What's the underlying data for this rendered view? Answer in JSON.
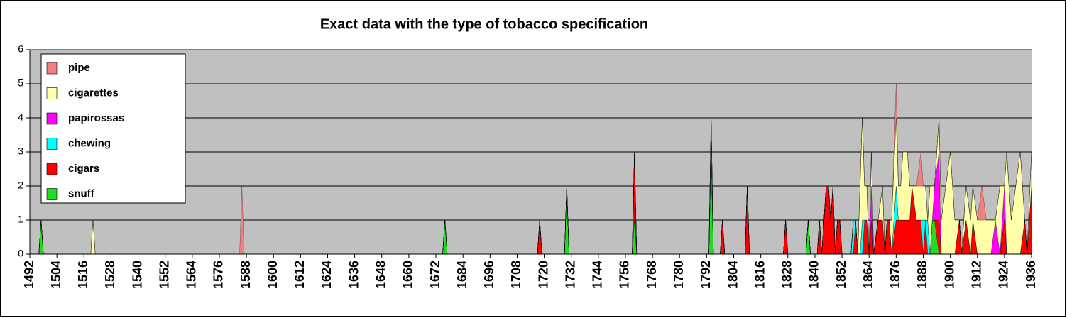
{
  "chart_data": {
    "type": "stacked-area",
    "title": "Exact data with the type of tobacco specification",
    "x": [
      1492,
      1496,
      1497,
      1498,
      1519,
      1520,
      1521,
      1585,
      1586,
      1587,
      1675,
      1676,
      1677,
      1717,
      1718,
      1719,
      1729,
      1730,
      1731,
      1759,
      1760,
      1761,
      1793,
      1794,
      1795,
      1798,
      1799,
      1800,
      1809,
      1810,
      1811,
      1826,
      1827,
      1828,
      1836,
      1837,
      1838,
      1841,
      1842,
      1843,
      1844,
      1845,
      1846,
      1847,
      1848,
      1849,
      1850,
      1851,
      1852,
      1856,
      1857,
      1858,
      1859,
      1860,
      1861,
      1862,
      1863,
      1864,
      1865,
      1866,
      1868,
      1870,
      1871,
      1872,
      1873,
      1874,
      1876,
      1877,
      1878,
      1879,
      1881,
      1882,
      1883,
      1885,
      1887,
      1888,
      1889,
      1890,
      1891,
      1892,
      1893,
      1895,
      1896,
      1898,
      1900,
      1902,
      1904,
      1905,
      1907,
      1909,
      1910,
      1912,
      1914,
      1916,
      1918,
      1920,
      1922,
      1924,
      1925,
      1927,
      1929,
      1931,
      1933,
      1934,
      1936
    ],
    "series": [
      {
        "name": "snuff",
        "color": "#22dd22",
        "values": [
          0,
          0,
          1,
          0,
          0,
          0,
          0,
          0,
          0,
          0,
          0,
          1,
          0,
          0,
          0,
          0,
          0,
          2,
          0,
          0,
          1,
          0,
          0,
          3,
          0,
          0,
          0,
          0,
          0,
          0,
          0,
          0,
          0,
          0,
          0,
          1,
          0,
          0,
          0,
          0,
          0,
          0,
          0,
          0,
          0,
          0,
          0,
          0,
          0,
          0,
          0,
          0,
          0,
          0,
          0,
          0,
          0,
          0,
          0,
          0,
          0,
          0,
          0,
          0,
          0,
          0,
          0,
          0,
          0,
          0,
          0,
          0,
          0,
          0,
          0,
          0,
          0,
          0,
          0,
          1,
          1,
          0,
          0,
          0,
          0,
          0,
          0,
          0,
          0,
          0,
          0,
          0,
          0,
          0,
          0,
          0,
          0,
          0,
          0,
          0,
          0,
          0,
          0,
          0,
          0
        ]
      },
      {
        "name": "cigars",
        "color": "#ff0000",
        "values": [
          0,
          0,
          0,
          0,
          0,
          0,
          0,
          0,
          0,
          0,
          0,
          0,
          0,
          0,
          1,
          0,
          0,
          0,
          0,
          0,
          2,
          0,
          0,
          0,
          0,
          0,
          1,
          0,
          0,
          2,
          0,
          0,
          1,
          0,
          0,
          0,
          0,
          0,
          1,
          0,
          1,
          2,
          2,
          1,
          2,
          0,
          1,
          1,
          0,
          0,
          0,
          1,
          0,
          0,
          0,
          1,
          1,
          0,
          1,
          0,
          1,
          1,
          0,
          1,
          1,
          0,
          1,
          1,
          1,
          1,
          1,
          1,
          2,
          1,
          1,
          0,
          1,
          0,
          0,
          0,
          0,
          1,
          0,
          0,
          0,
          0,
          1,
          0,
          1,
          0,
          1,
          0,
          0,
          0,
          0,
          0,
          0,
          1,
          0,
          0,
          0,
          0,
          1,
          0,
          2
        ]
      },
      {
        "name": "chewing",
        "color": "#00ffff",
        "values": [
          0,
          0,
          0,
          0,
          0,
          0,
          0,
          0,
          0,
          0,
          0,
          0,
          0,
          0,
          0,
          0,
          0,
          0,
          0,
          0,
          0,
          0,
          0,
          1,
          0,
          0,
          0,
          0,
          0,
          0,
          0,
          0,
          0,
          0,
          0,
          0,
          0,
          0,
          0,
          0,
          0,
          0,
          0,
          0,
          0,
          0,
          0,
          0,
          0,
          0,
          1,
          0,
          0,
          0,
          1,
          0,
          0,
          0,
          0,
          0,
          0,
          0,
          0,
          0,
          0,
          0,
          1,
          0,
          0,
          0,
          0,
          0,
          0,
          0,
          0,
          1,
          0,
          1,
          0,
          0,
          0,
          0,
          0,
          0,
          0,
          0,
          0,
          0,
          0,
          0,
          0,
          0,
          0,
          0,
          0,
          0,
          0,
          0,
          0,
          0,
          0,
          0,
          0,
          0,
          0
        ]
      },
      {
        "name": "papirossas",
        "color": "#ff00ff",
        "values": [
          0,
          0,
          0,
          0,
          0,
          0,
          0,
          0,
          0,
          0,
          0,
          0,
          0,
          0,
          0,
          0,
          0,
          0,
          0,
          0,
          0,
          0,
          0,
          0,
          0,
          0,
          0,
          0,
          0,
          0,
          0,
          0,
          0,
          0,
          0,
          0,
          0,
          0,
          0,
          0,
          0,
          0,
          0,
          0,
          0,
          0,
          0,
          0,
          0,
          0,
          0,
          0,
          0,
          0,
          0,
          0,
          0,
          0,
          1,
          0,
          0,
          0,
          0,
          0,
          0,
          0,
          0,
          0,
          0,
          0,
          0,
          0,
          0,
          0,
          0,
          0,
          0,
          0,
          0,
          0,
          1,
          2,
          0,
          0,
          0,
          0,
          0,
          0,
          0,
          0,
          0,
          0,
          0,
          0,
          0,
          1,
          0,
          1,
          0,
          0,
          0,
          0,
          0,
          0,
          0
        ]
      },
      {
        "name": "cigarettes",
        "color": "#ffffa8",
        "values": [
          0,
          0,
          0,
          0,
          0,
          1,
          0,
          0,
          0,
          0,
          0,
          0,
          0,
          0,
          0,
          0,
          0,
          0,
          0,
          0,
          0,
          0,
          0,
          0,
          0,
          0,
          0,
          0,
          0,
          0,
          0,
          0,
          0,
          0,
          0,
          0,
          0,
          0,
          0,
          0,
          0,
          0,
          0,
          0,
          0,
          0,
          0,
          0,
          0,
          0,
          0,
          0,
          0,
          2,
          3,
          1,
          1,
          0,
          1,
          0,
          0,
          1,
          0,
          0,
          0,
          1,
          2,
          1,
          1,
          2,
          2,
          1,
          0,
          1,
          1,
          1,
          1,
          0,
          2,
          1,
          0,
          1,
          1,
          2,
          3,
          1,
          0,
          0,
          1,
          1,
          1,
          1,
          1,
          1,
          1,
          0,
          2,
          0,
          3,
          1,
          2,
          3,
          0,
          0,
          1
        ]
      },
      {
        "name": "pipe",
        "color": "#f08080",
        "values": [
          0,
          0,
          0,
          0,
          0,
          0,
          0,
          0,
          2,
          0,
          0,
          0,
          0,
          0,
          0,
          0,
          0,
          0,
          0,
          0,
          0,
          0,
          0,
          0,
          0,
          0,
          0,
          0,
          0,
          0,
          0,
          0,
          0,
          0,
          0,
          0,
          0,
          0,
          0,
          0,
          0,
          0,
          0,
          0,
          0,
          0,
          0,
          0,
          0,
          0,
          0,
          0,
          0,
          0,
          0,
          0,
          0,
          0,
          0,
          0,
          0,
          0,
          0,
          0,
          0,
          0,
          1,
          0,
          0,
          0,
          0,
          0,
          0,
          0,
          1,
          0,
          0,
          0,
          0,
          0,
          0,
          0,
          0,
          0,
          0,
          0,
          0,
          0,
          0,
          0,
          0,
          0,
          1,
          0,
          0,
          0,
          0,
          0,
          0,
          0,
          0,
          0,
          0,
          0,
          0
        ]
      }
    ],
    "xlim": [
      1492,
      1936
    ],
    "xticks": [
      1492,
      1504,
      1516,
      1528,
      1540,
      1552,
      1564,
      1576,
      1588,
      1600,
      1612,
      1624,
      1636,
      1648,
      1660,
      1672,
      1684,
      1696,
      1708,
      1720,
      1732,
      1744,
      1756,
      1768,
      1780,
      1792,
      1804,
      1816,
      1828,
      1840,
      1852,
      1864,
      1876,
      1888,
      1900,
      1912,
      1924,
      1936
    ],
    "ylim": [
      0,
      6
    ],
    "yticks": [
      0,
      1,
      2,
      3,
      4,
      5,
      6
    ],
    "grid": true,
    "legend": "top-left"
  }
}
